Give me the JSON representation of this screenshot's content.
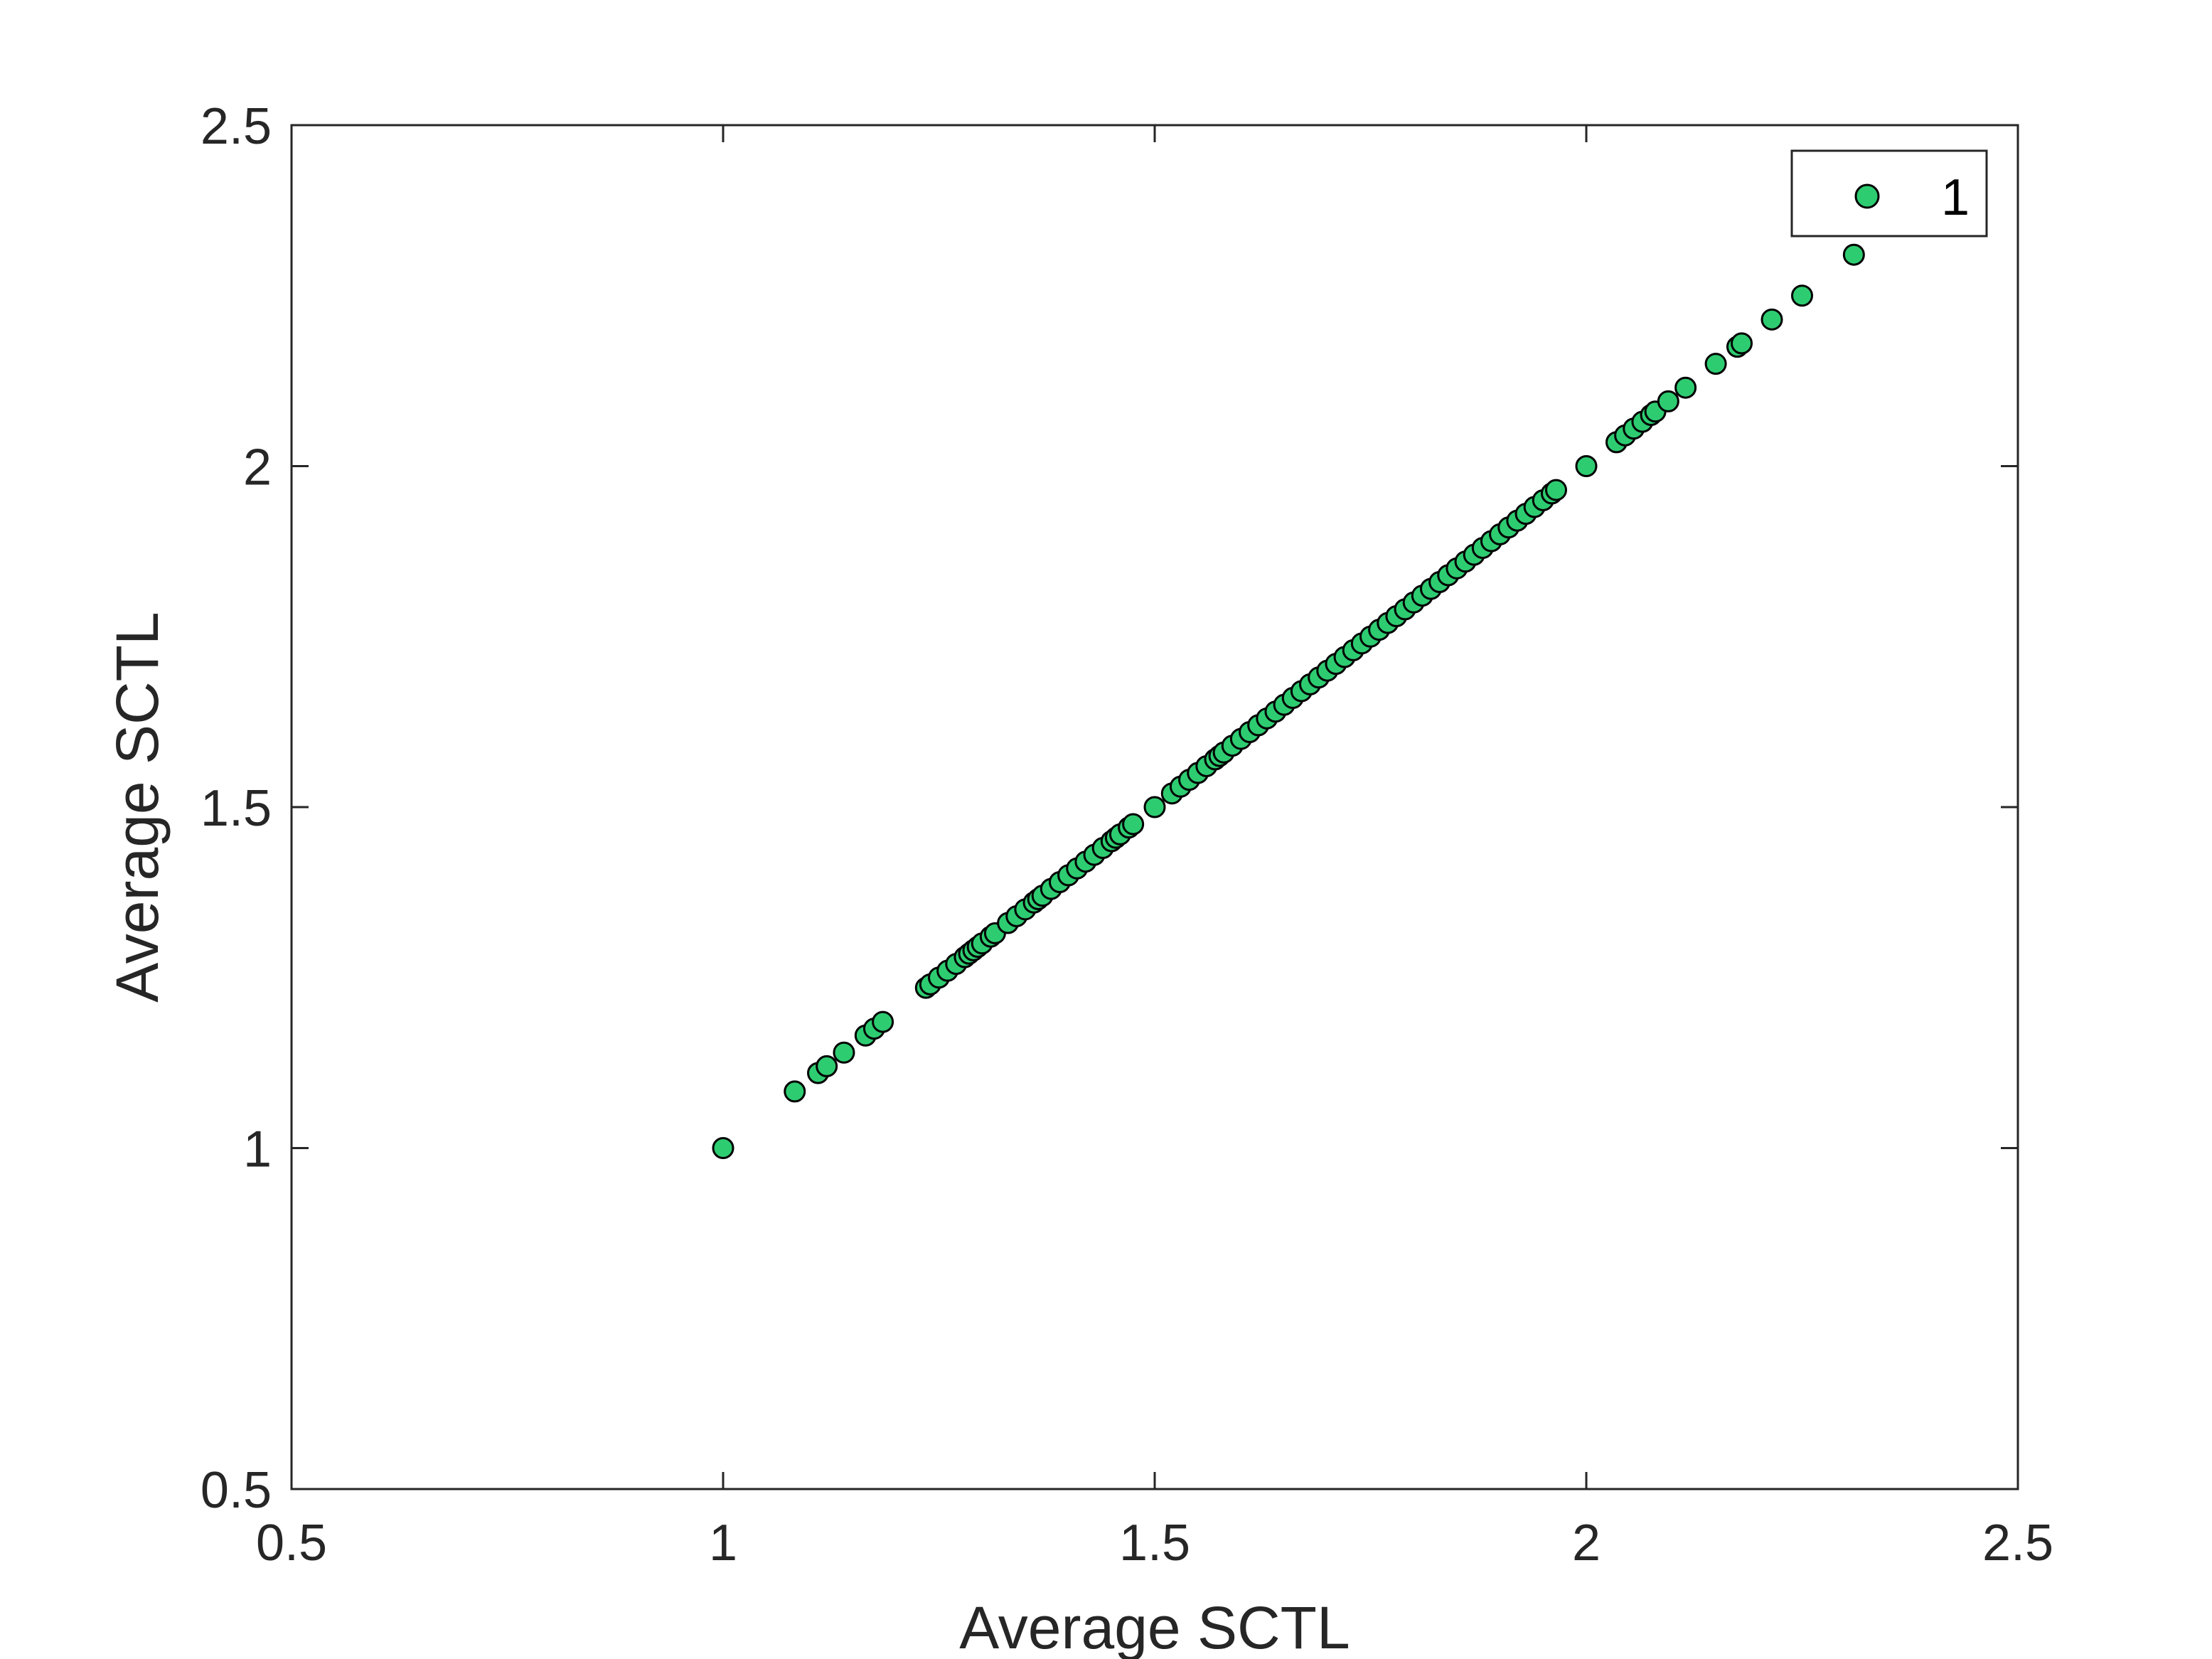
{
  "chart_data": {
    "type": "scatter",
    "title": "",
    "xlabel": "Average SCTL",
    "ylabel": "Average SCTL",
    "xlim": [
      0.5,
      2.5
    ],
    "ylim": [
      0.5,
      2.5
    ],
    "xticks": [
      "0.5",
      "1",
      "1.5",
      "2",
      "2.5"
    ],
    "yticks": [
      "0.5",
      "1",
      "1.5",
      "2",
      "2.5"
    ],
    "grid": false,
    "legend": {
      "placement": "top-right",
      "entries": [
        "1"
      ]
    },
    "colors": {
      "marker_fill": "#2ecc71",
      "marker_edge": "#000000",
      "axis": "#262626"
    },
    "series": [
      {
        "name": "1",
        "points": [
          [
            1.0,
            1.0
          ],
          [
            1.083,
            1.083
          ],
          [
            1.11,
            1.11
          ],
          [
            1.12,
            1.12
          ],
          [
            1.14,
            1.14
          ],
          [
            1.165,
            1.165
          ],
          [
            1.175,
            1.175
          ],
          [
            1.185,
            1.185
          ],
          [
            1.235,
            1.235
          ],
          [
            1.24,
            1.24
          ],
          [
            1.25,
            1.25
          ],
          [
            1.26,
            1.26
          ],
          [
            1.27,
            1.27
          ],
          [
            1.28,
            1.28
          ],
          [
            1.285,
            1.285
          ],
          [
            1.29,
            1.29
          ],
          [
            1.295,
            1.295
          ],
          [
            1.3,
            1.3
          ],
          [
            1.31,
            1.31
          ],
          [
            1.315,
            1.315
          ],
          [
            1.33,
            1.33
          ],
          [
            1.34,
            1.34
          ],
          [
            1.35,
            1.35
          ],
          [
            1.36,
            1.36
          ],
          [
            1.365,
            1.365
          ],
          [
            1.37,
            1.37
          ],
          [
            1.38,
            1.38
          ],
          [
            1.39,
            1.39
          ],
          [
            1.4,
            1.4
          ],
          [
            1.41,
            1.41
          ],
          [
            1.42,
            1.42
          ],
          [
            1.43,
            1.43
          ],
          [
            1.44,
            1.44
          ],
          [
            1.45,
            1.45
          ],
          [
            1.455,
            1.455
          ],
          [
            1.46,
            1.46
          ],
          [
            1.47,
            1.47
          ],
          [
            1.475,
            1.475
          ],
          [
            1.5,
            1.5
          ],
          [
            1.52,
            1.52
          ],
          [
            1.53,
            1.53
          ],
          [
            1.54,
            1.54
          ],
          [
            1.55,
            1.55
          ],
          [
            1.56,
            1.56
          ],
          [
            1.57,
            1.57
          ],
          [
            1.575,
            1.575
          ],
          [
            1.58,
            1.58
          ],
          [
            1.59,
            1.59
          ],
          [
            1.6,
            1.6
          ],
          [
            1.61,
            1.61
          ],
          [
            1.62,
            1.62
          ],
          [
            1.63,
            1.63
          ],
          [
            1.64,
            1.64
          ],
          [
            1.65,
            1.65
          ],
          [
            1.66,
            1.66
          ],
          [
            1.67,
            1.67
          ],
          [
            1.68,
            1.68
          ],
          [
            1.69,
            1.69
          ],
          [
            1.7,
            1.7
          ],
          [
            1.71,
            1.71
          ],
          [
            1.72,
            1.72
          ],
          [
            1.73,
            1.73
          ],
          [
            1.74,
            1.74
          ],
          [
            1.75,
            1.75
          ],
          [
            1.76,
            1.76
          ],
          [
            1.77,
            1.77
          ],
          [
            1.78,
            1.78
          ],
          [
            1.79,
            1.79
          ],
          [
            1.8,
            1.8
          ],
          [
            1.81,
            1.81
          ],
          [
            1.82,
            1.82
          ],
          [
            1.83,
            1.83
          ],
          [
            1.84,
            1.84
          ],
          [
            1.85,
            1.85
          ],
          [
            1.86,
            1.86
          ],
          [
            1.87,
            1.87
          ],
          [
            1.88,
            1.88
          ],
          [
            1.89,
            1.89
          ],
          [
            1.9,
            1.9
          ],
          [
            1.91,
            1.91
          ],
          [
            1.92,
            1.92
          ],
          [
            1.93,
            1.93
          ],
          [
            1.94,
            1.94
          ],
          [
            1.95,
            1.95
          ],
          [
            1.96,
            1.96
          ],
          [
            1.965,
            1.965
          ],
          [
            2.0,
            2.0
          ],
          [
            2.035,
            2.035
          ],
          [
            2.045,
            2.045
          ],
          [
            2.055,
            2.055
          ],
          [
            2.065,
            2.065
          ],
          [
            2.075,
            2.075
          ],
          [
            2.08,
            2.08
          ],
          [
            2.095,
            2.095
          ],
          [
            2.115,
            2.115
          ],
          [
            2.15,
            2.15
          ],
          [
            2.175,
            2.175
          ],
          [
            2.18,
            2.18
          ],
          [
            2.215,
            2.215
          ],
          [
            2.25,
            2.25
          ],
          [
            2.31,
            2.31
          ]
        ]
      }
    ]
  }
}
